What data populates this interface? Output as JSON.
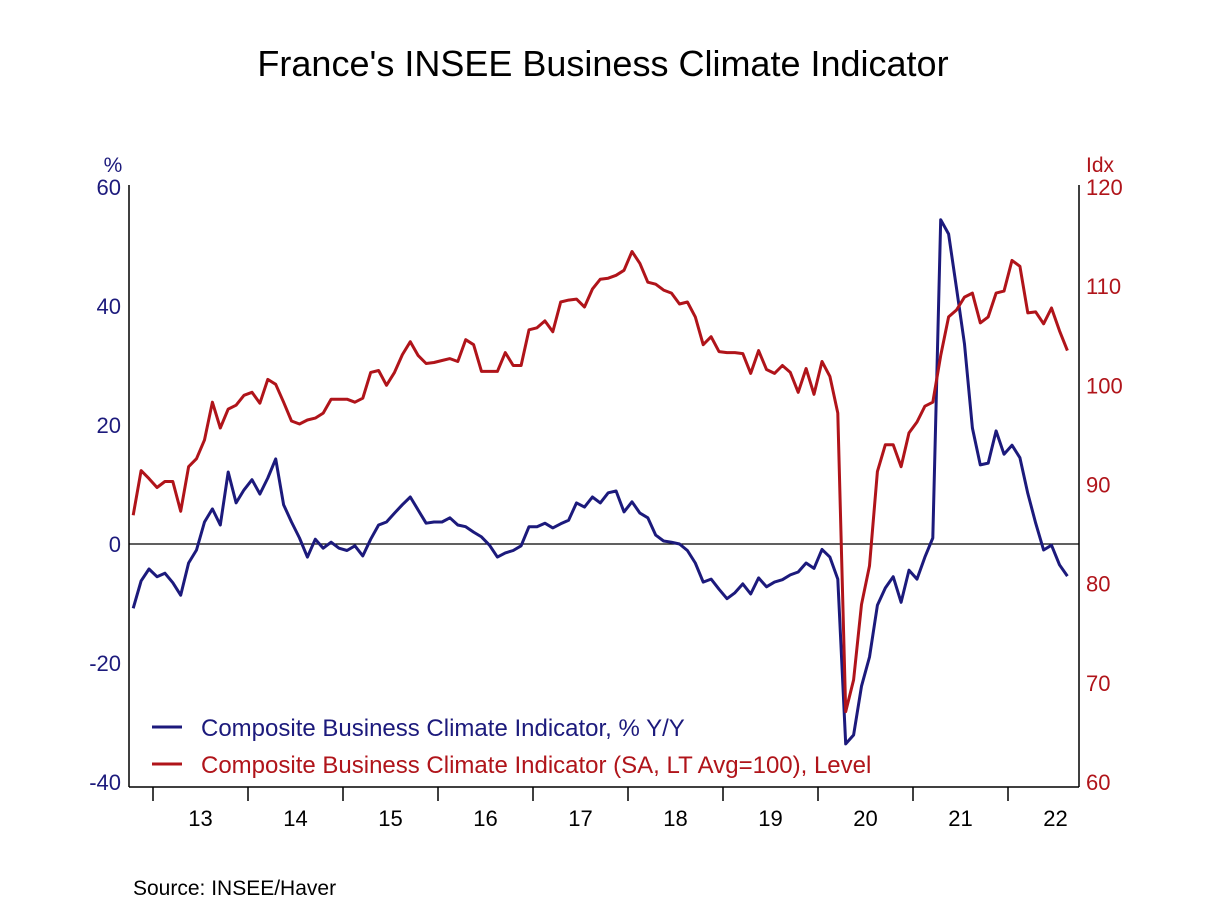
{
  "chart_data": {
    "type": "line",
    "title": "France's INSEE Business Climate Indicator",
    "source": "Source:  INSEE/Haver",
    "left_axis": {
      "unit": "%",
      "ylim": [
        -40,
        60
      ],
      "ticks": [
        "60",
        "40",
        "20",
        "0",
        "-20",
        "-40"
      ],
      "color": "#1c1a7c"
    },
    "right_axis": {
      "unit": "Idx",
      "ylim": [
        60,
        120
      ],
      "ticks": [
        "120",
        "110",
        "100",
        "90",
        "80",
        "70",
        "60"
      ],
      "color": "#b0141a"
    },
    "x_axis": {
      "start": "2012-10",
      "end": "2022-08",
      "frequency": "monthly",
      "year_labels": [
        "13",
        "14",
        "15",
        "16",
        "17",
        "18",
        "19",
        "20",
        "21",
        "22"
      ]
    },
    "zero_line": true,
    "grid": false,
    "legend_placement": "bottom-left",
    "series": [
      {
        "name": "Composite Business Climate Indicator, % Y/Y",
        "axis": "left",
        "color": "#1c1a7c",
        "values": [
          -10.8,
          -6.2,
          -4.2,
          -5.5,
          -4.9,
          -6.5,
          -8.6,
          -3.2,
          -1.0,
          3.7,
          5.9,
          3.2,
          12.1,
          6.9,
          9.1,
          10.8,
          8.4,
          11.1,
          14.3,
          6.6,
          3.7,
          1.0,
          -2.2,
          0.8,
          -0.7,
          0.3,
          -0.7,
          -1.1,
          -0.3,
          -2.0,
          0.8,
          3.2,
          3.7,
          5.2,
          6.6,
          7.9,
          5.7,
          3.5,
          3.7,
          3.7,
          4.4,
          3.2,
          2.9,
          2.0,
          1.2,
          -0.2,
          -2.2,
          -1.5,
          -1.1,
          -0.3,
          2.9,
          2.9,
          3.5,
          2.7,
          3.4,
          4.0,
          6.9,
          6.2,
          7.9,
          6.9,
          8.6,
          8.9,
          5.4,
          7.1,
          5.2,
          4.4,
          1.5,
          0.5,
          0.3,
          0.0,
          -1.1,
          -3.2,
          -6.4,
          -5.9,
          -7.6,
          -9.2,
          -8.2,
          -6.7,
          -8.4,
          -5.7,
          -7.2,
          -6.4,
          -6.0,
          -5.2,
          -4.7,
          -3.2,
          -4.1,
          -0.9,
          -2.2,
          -5.9,
          -33.6,
          -32.1,
          -23.9,
          -19.0,
          -10.3,
          -7.4,
          -5.5,
          -9.8,
          -4.4,
          -5.9,
          -2.2,
          1.0,
          54.5,
          52.1,
          43.0,
          33.6,
          19.5,
          13.3,
          13.6,
          19.0,
          15.1,
          16.6,
          14.5,
          8.5,
          3.5,
          -1.0,
          -0.2,
          -3.5,
          -5.4
        ]
      },
      {
        "name": "Composite Business Climate Indicator (SA, LT Avg=100), Level",
        "axis": "right",
        "color": "#b0141a",
        "values": [
          86.9,
          91.4,
          90.6,
          89.7,
          90.3,
          90.3,
          87.3,
          91.8,
          92.6,
          94.5,
          98.3,
          95.7,
          97.6,
          98.0,
          99.0,
          99.3,
          98.2,
          100.6,
          100.1,
          98.3,
          96.4,
          96.1,
          96.5,
          96.7,
          97.2,
          98.6,
          98.6,
          98.6,
          98.3,
          98.7,
          101.3,
          101.5,
          100.0,
          101.3,
          103.1,
          104.4,
          103.0,
          102.2,
          102.3,
          102.5,
          102.7,
          102.4,
          104.6,
          104.1,
          101.4,
          101.4,
          101.4,
          103.3,
          102.0,
          102.0,
          105.6,
          105.8,
          106.5,
          105.4,
          108.4,
          108.6,
          108.7,
          107.9,
          109.7,
          110.7,
          110.8,
          111.1,
          111.6,
          113.5,
          112.3,
          110.4,
          110.2,
          109.6,
          109.3,
          108.2,
          108.4,
          106.9,
          104.1,
          104.9,
          103.4,
          103.3,
          103.3,
          103.2,
          101.2,
          103.5,
          101.6,
          101.2,
          102.0,
          101.3,
          99.3,
          101.7,
          99.1,
          102.4,
          100.9,
          97.2,
          67.1,
          70.3,
          77.9,
          81.8,
          91.3,
          94.0,
          94.0,
          91.8,
          95.2,
          96.3,
          97.9,
          98.3,
          103.0,
          106.9,
          107.6,
          108.9,
          109.3,
          106.3,
          106.9,
          109.3,
          109.5,
          112.6,
          112.0,
          107.3,
          107.4,
          106.2,
          107.8,
          105.5,
          103.5
        ]
      }
    ]
  }
}
